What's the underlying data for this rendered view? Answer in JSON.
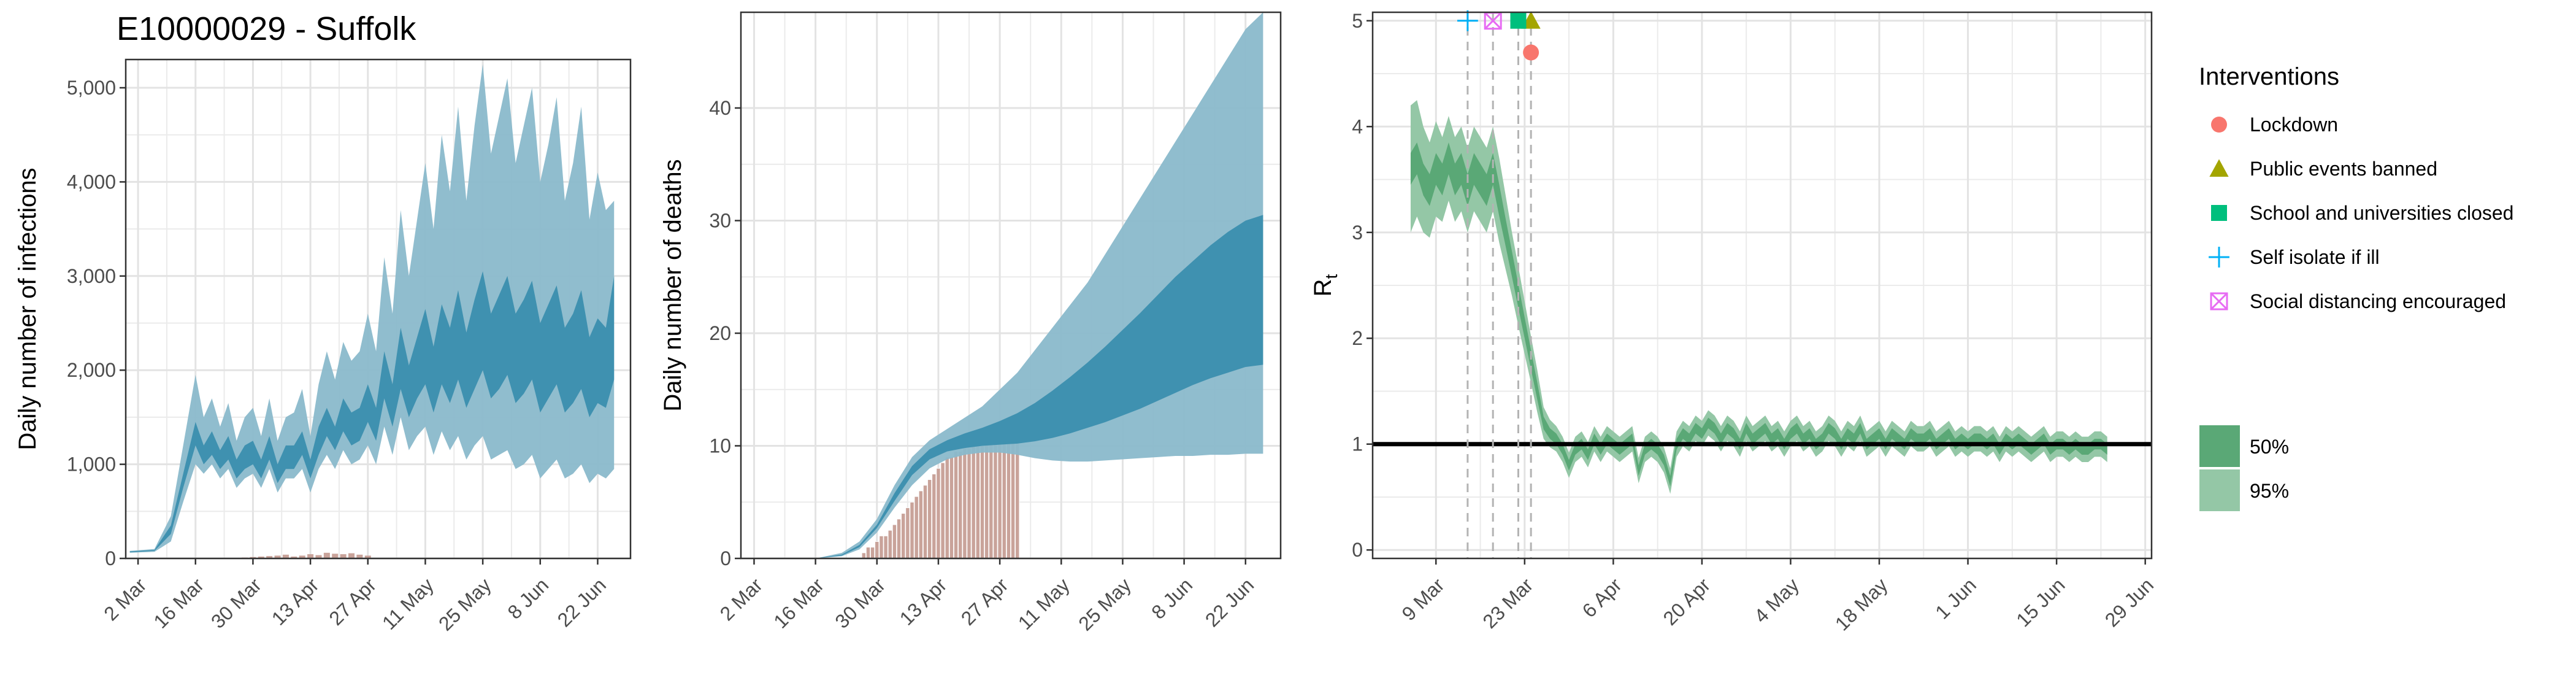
{
  "title": "E10000029 - Suffolk",
  "colors": {
    "infection_95": "#8ab9cb",
    "infection_50": "#3b8eae",
    "observed_bar": "#c9a39a",
    "rt_95": "#94c7a6",
    "rt_50": "#5aa876",
    "lockdown": "#f8766d",
    "public_events": "#a3a500",
    "school": "#00bf7d",
    "self_isolate": "#00b0f6",
    "social_distancing": "#e76bf3",
    "grid": "#ebebeb"
  },
  "chart_data": [
    {
      "type": "area",
      "name": "infections",
      "ylabel": "Daily number of infections",
      "xlabel": "",
      "xlim": [
        -3,
        120
      ],
      "ylim": [
        0,
        5300
      ],
      "x_ticks": [
        0,
        14,
        28,
        42,
        56,
        70,
        84,
        98,
        112
      ],
      "x_tick_labels": [
        "2 Mar",
        "16 Mar",
        "30 Mar",
        "13 Apr",
        "27 Apr",
        "11 May",
        "25 May",
        "8 Jun",
        "22 Jun"
      ],
      "y_ticks": [
        0,
        1000,
        2000,
        3000,
        4000,
        5000
      ],
      "y_tick_labels": [
        "0",
        "1,000",
        "2,000",
        "3,000",
        "4,000",
        "5,000"
      ],
      "band_x": [
        -2,
        4,
        8,
        11,
        14,
        16,
        18,
        20,
        22,
        24,
        26,
        28,
        30,
        32,
        34,
        36,
        38,
        40,
        42,
        44,
        46,
        48,
        50,
        52,
        54,
        56,
        58,
        60,
        62,
        64,
        66,
        68,
        70,
        72,
        74,
        76,
        78,
        80,
        82,
        84,
        86,
        88,
        90,
        92,
        94,
        96,
        98,
        100,
        102,
        104,
        106,
        108,
        110,
        112,
        114,
        116
      ],
      "ci95_upper": [
        80,
        100,
        450,
        1200,
        1950,
        1500,
        1700,
        1400,
        1650,
        1250,
        1500,
        1600,
        1300,
        1700,
        1250,
        1500,
        1550,
        1800,
        1300,
        1850,
        2200,
        1900,
        2300,
        2100,
        2200,
        2600,
        2200,
        3200,
        2600,
        3700,
        3000,
        3600,
        4200,
        3500,
        4500,
        3900,
        4800,
        3800,
        4600,
        5250,
        4300,
        4700,
        5100,
        4200,
        4600,
        5000,
        4000,
        4400,
        4900,
        3800,
        4200,
        4800,
        3600,
        4100,
        3700,
        3800
      ],
      "ci95_lower": [
        60,
        70,
        180,
        600,
        1000,
        900,
        1000,
        850,
        950,
        750,
        850,
        900,
        750,
        950,
        700,
        850,
        850,
        950,
        700,
        950,
        1100,
        950,
        1150,
        1000,
        1050,
        1200,
        1000,
        1400,
        1100,
        1500,
        1150,
        1300,
        1400,
        1100,
        1350,
        1150,
        1300,
        1050,
        1200,
        1300,
        1050,
        1100,
        1150,
        950,
        1000,
        1100,
        850,
        950,
        1050,
        850,
        900,
        1000,
        800,
        900,
        850,
        950
      ],
      "ci50_upper": [
        75,
        90,
        350,
        900,
        1450,
        1200,
        1350,
        1150,
        1300,
        1050,
        1200,
        1250,
        1050,
        1300,
        1000,
        1200,
        1200,
        1350,
        1050,
        1400,
        1600,
        1400,
        1700,
        1550,
        1600,
        1850,
        1600,
        2200,
        1850,
        2450,
        2050,
        2350,
        2650,
        2250,
        2700,
        2450,
        2850,
        2400,
        2750,
        3050,
        2600,
        2800,
        3000,
        2600,
        2750,
        2950,
        2500,
        2700,
        2900,
        2450,
        2600,
        2850,
        2350,
        2550,
        2450,
        3000
      ],
      "ci50_lower": [
        65,
        80,
        260,
        750,
        1200,
        1000,
        1100,
        950,
        1050,
        850,
        950,
        1000,
        850,
        1050,
        800,
        950,
        950,
        1100,
        850,
        1100,
        1300,
        1150,
        1350,
        1200,
        1250,
        1450,
        1250,
        1700,
        1400,
        1800,
        1500,
        1700,
        1850,
        1550,
        1850,
        1650,
        1900,
        1600,
        1800,
        2000,
        1700,
        1800,
        1950,
        1650,
        1750,
        1900,
        1550,
        1700,
        1850,
        1550,
        1650,
        1800,
        1500,
        1650,
        1600,
        1900
      ],
      "bars_x": [
        26,
        28,
        30,
        32,
        34,
        36,
        38,
        40,
        42,
        44,
        46,
        48,
        50,
        52,
        54,
        56
      ],
      "bars_y": [
        10,
        15,
        20,
        25,
        30,
        40,
        20,
        30,
        45,
        35,
        60,
        50,
        45,
        55,
        40,
        30
      ]
    },
    {
      "type": "area",
      "name": "deaths",
      "ylabel": "Daily number of deaths",
      "xlabel": "",
      "xlim": [
        -3,
        120
      ],
      "ylim": [
        0,
        48.5
      ],
      "x_ticks": [
        0,
        14,
        28,
        42,
        56,
        70,
        84,
        98,
        112
      ],
      "x_tick_labels": [
        "2 Mar",
        "16 Mar",
        "30 Mar",
        "13 Apr",
        "27 Apr",
        "11 May",
        "25 May",
        "8 Jun",
        "22 Jun"
      ],
      "y_ticks": [
        0,
        10,
        20,
        30,
        40
      ],
      "y_tick_labels": [
        "0",
        "10",
        "20",
        "30",
        "40"
      ],
      "band_x": [
        14,
        20,
        24,
        28,
        32,
        36,
        40,
        44,
        48,
        52,
        56,
        60,
        64,
        68,
        72,
        76,
        80,
        84,
        88,
        92,
        96,
        100,
        104,
        108,
        112,
        116
      ],
      "ci95_upper": [
        0,
        0.5,
        1.5,
        3.5,
        6.5,
        9,
        10.5,
        11.5,
        12.5,
        13.5,
        15,
        16.5,
        18.5,
        20.5,
        22.5,
        24.5,
        27,
        29.5,
        32,
        34.5,
        37,
        39.5,
        42,
        44.5,
        47,
        48.5
      ],
      "ci95_lower": [
        0,
        0.2,
        0.8,
        2.3,
        4.5,
        6.5,
        8,
        8.8,
        9.2,
        9.4,
        9.4,
        9.2,
        8.9,
        8.7,
        8.6,
        8.6,
        8.7,
        8.8,
        8.9,
        9,
        9.1,
        9.1,
        9.2,
        9.2,
        9.3,
        9.3
      ],
      "ci50_upper": [
        0,
        0.35,
        1.2,
        3,
        5.8,
        8.2,
        9.7,
        10.5,
        11.1,
        11.6,
        12.2,
        12.9,
        13.8,
        14.9,
        16.1,
        17.4,
        18.8,
        20.3,
        21.8,
        23.4,
        25,
        26.4,
        27.8,
        29,
        30,
        30.5
      ],
      "ci50_lower": [
        0,
        0.25,
        1,
        2.7,
        5.1,
        7.4,
        8.8,
        9.5,
        9.8,
        10,
        10.1,
        10.2,
        10.4,
        10.7,
        11.1,
        11.6,
        12.1,
        12.7,
        13.3,
        14,
        14.7,
        15.4,
        16,
        16.5,
        17,
        17.2
      ],
      "bars_x": [
        25,
        26,
        27,
        28,
        29,
        30,
        31,
        32,
        33,
        34,
        35,
        36,
        37,
        38,
        39,
        40,
        41,
        42,
        43,
        44,
        45,
        46,
        47,
        48,
        49,
        50,
        51,
        52,
        53,
        54,
        55,
        56,
        57,
        58,
        59,
        60
      ],
      "bars_y": [
        0.5,
        1,
        1,
        1.5,
        2,
        2,
        2.5,
        3,
        3.5,
        4,
        4.5,
        5,
        5.5,
        6,
        6.5,
        7,
        7.5,
        8,
        8.5,
        9,
        9,
        9.5,
        9.5,
        9.8,
        9.8,
        10,
        10,
        10,
        10.2,
        10.2,
        10.2,
        10.5,
        10.5,
        10.5,
        10.5,
        10.5
      ]
    },
    {
      "type": "area",
      "name": "rt",
      "ylabel": "R",
      "ylabel_sub": "t",
      "xlabel": "",
      "xlim": [
        -3,
        120
      ],
      "ylim": [
        -0.08,
        5.08
      ],
      "x_ticks": [
        7,
        21,
        35,
        49,
        63,
        77,
        91,
        105,
        119
      ],
      "x_tick_labels": [
        "9 Mar",
        "23 Mar",
        "6 Apr",
        "20 Apr",
        "4 May",
        "18 May",
        "1 Jun",
        "15 Jun",
        "29 Jun"
      ],
      "y_ticks": [
        0,
        1,
        2,
        3,
        4,
        5
      ],
      "y_tick_labels": [
        "0",
        "1",
        "2",
        "3",
        "4",
        "5"
      ],
      "reference_line": 1,
      "band_x": [
        3,
        4,
        5,
        6,
        7,
        8,
        9,
        10,
        11,
        12,
        13,
        14,
        15,
        16,
        17,
        18,
        19,
        20,
        21,
        22,
        23,
        24,
        25,
        26,
        27,
        28,
        29,
        30,
        31,
        32,
        33,
        34,
        35,
        36,
        37,
        38,
        39,
        40,
        41,
        42,
        43,
        44,
        45,
        46,
        47,
        48,
        49,
        50,
        51,
        52,
        53,
        54,
        55,
        56,
        57,
        58,
        59,
        60,
        61,
        62,
        63,
        64,
        65,
        66,
        67,
        68,
        69,
        70,
        71,
        72,
        73,
        74,
        75,
        76,
        77,
        78,
        79,
        80,
        81,
        82,
        83,
        84,
        85,
        86,
        87,
        88,
        89,
        90,
        91,
        92,
        93,
        94,
        95,
        96,
        97,
        98,
        99,
        100,
        101,
        102,
        103,
        104,
        105,
        106,
        107,
        108,
        109,
        110,
        111,
        112,
        113
      ],
      "rt_mid": [
        3.6,
        3.7,
        3.5,
        3.4,
        3.6,
        3.5,
        3.7,
        3.5,
        3.6,
        3.4,
        3.6,
        3.5,
        3.4,
        3.6,
        3.3,
        3.0,
        2.7,
        2.4,
        2.1,
        1.8,
        1.5,
        1.2,
        1.1,
        1.05,
        0.95,
        0.8,
        0.95,
        1.0,
        0.9,
        1.05,
        0.95,
        1.05,
        1.0,
        0.95,
        1.0,
        1.05,
        0.75,
        0.95,
        1.0,
        0.95,
        0.85,
        0.65,
        1.0,
        1.1,
        1.05,
        1.15,
        1.1,
        1.2,
        1.15,
        1.05,
        1.15,
        1.1,
        1.0,
        1.15,
        1.05,
        1.1,
        1.15,
        1.05,
        1.1,
        1.0,
        1.1,
        1.15,
        1.05,
        1.1,
        1.0,
        1.05,
        1.15,
        1.1,
        1.0,
        1.1,
        1.05,
        1.15,
        1.0,
        1.05,
        1.1,
        1.0,
        1.1,
        1.05,
        1.0,
        1.1,
        1.05,
        1.05,
        1.1,
        1.0,
        1.05,
        1.1,
        1.0,
        1.05,
        1.0,
        1.05,
        1.05,
        1.0,
        1.05,
        0.95,
        1.05,
        1.0,
        1.05,
        1.0,
        0.95,
        1.0,
        1.05,
        0.95,
        1.0,
        1.0,
        0.95,
        1.0,
        0.95,
        0.95,
        1.0,
        1.0,
        0.95
      ],
      "ci50_halfwidth": [
        0.15,
        0.15,
        0.15,
        0.15,
        0.15,
        0.15,
        0.15,
        0.15,
        0.15,
        0.15,
        0.15,
        0.15,
        0.15,
        0.15,
        0.15,
        0.13,
        0.12,
        0.11,
        0.1,
        0.09,
        0.08,
        0.06,
        0.05,
        0.05,
        0.05,
        0.05,
        0.05,
        0.05,
        0.05,
        0.05,
        0.05,
        0.05,
        0.05,
        0.05,
        0.05,
        0.05,
        0.05,
        0.05,
        0.05,
        0.05,
        0.05,
        0.05,
        0.05,
        0.05,
        0.05,
        0.05,
        0.05,
        0.05,
        0.05,
        0.05,
        0.05,
        0.05,
        0.05,
        0.05,
        0.05,
        0.05,
        0.05,
        0.05,
        0.05,
        0.05,
        0.05,
        0.05,
        0.05,
        0.05,
        0.05,
        0.05,
        0.05,
        0.05,
        0.05,
        0.05,
        0.05,
        0.05,
        0.05,
        0.05,
        0.05,
        0.05,
        0.05,
        0.05,
        0.05,
        0.05,
        0.05,
        0.05,
        0.05,
        0.05,
        0.05,
        0.05,
        0.05,
        0.05,
        0.05,
        0.05,
        0.05,
        0.05,
        0.05,
        0.05,
        0.05,
        0.05,
        0.05,
        0.05,
        0.05,
        0.05,
        0.05,
        0.05,
        0.05,
        0.05,
        0.05,
        0.05,
        0.05,
        0.05,
        0.05,
        0.05,
        0.05
      ],
      "ci95_halfwidth": [
        0.6,
        0.55,
        0.5,
        0.45,
        0.45,
        0.4,
        0.4,
        0.4,
        0.4,
        0.4,
        0.4,
        0.4,
        0.4,
        0.4,
        0.4,
        0.35,
        0.3,
        0.28,
        0.25,
        0.22,
        0.2,
        0.15,
        0.13,
        0.12,
        0.12,
        0.12,
        0.12,
        0.12,
        0.12,
        0.12,
        0.12,
        0.12,
        0.12,
        0.12,
        0.12,
        0.12,
        0.12,
        0.12,
        0.12,
        0.12,
        0.12,
        0.12,
        0.12,
        0.12,
        0.12,
        0.12,
        0.12,
        0.12,
        0.12,
        0.12,
        0.12,
        0.12,
        0.12,
        0.12,
        0.12,
        0.12,
        0.12,
        0.12,
        0.12,
        0.12,
        0.12,
        0.12,
        0.12,
        0.12,
        0.12,
        0.12,
        0.12,
        0.12,
        0.12,
        0.12,
        0.12,
        0.12,
        0.12,
        0.12,
        0.12,
        0.12,
        0.12,
        0.12,
        0.12,
        0.12,
        0.12,
        0.12,
        0.12,
        0.12,
        0.12,
        0.12,
        0.12,
        0.12,
        0.12,
        0.12,
        0.12,
        0.12,
        0.12,
        0.12,
        0.12,
        0.12,
        0.12,
        0.12,
        0.12,
        0.12,
        0.12,
        0.12,
        0.12,
        0.12,
        0.12,
        0.12,
        0.12,
        0.12,
        0.12,
        0.12,
        0.12
      ],
      "interventions": [
        {
          "label": "Lockdown",
          "x": 22,
          "y": 4.7,
          "shape": "circle",
          "color_key": "lockdown"
        },
        {
          "label": "Public events banned",
          "x": 22,
          "y": 5.0,
          "shape": "triangle",
          "color_key": "public_events"
        },
        {
          "label": "School and universities closed",
          "x": 20,
          "y": 5.0,
          "shape": "square",
          "color_key": "school"
        },
        {
          "label": "Self isolate if ill",
          "x": 12,
          "y": 5.0,
          "shape": "plus",
          "color_key": "self_isolate"
        },
        {
          "label": "Social distancing encouraged",
          "x": 16,
          "y": 5.0,
          "shape": "boxcross",
          "color_key": "social_distancing"
        }
      ]
    }
  ],
  "legend": {
    "title": "Interventions",
    "ci_labels": [
      "50%",
      "95%"
    ]
  }
}
